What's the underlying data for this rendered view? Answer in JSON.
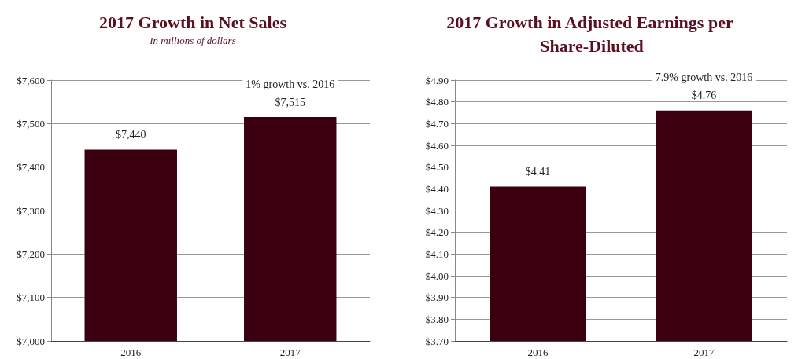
{
  "chart_data": [
    {
      "type": "bar",
      "title": "2017 Growth in Net Sales",
      "subtitle": "In millions of dollars",
      "categories": [
        "2016",
        "2017"
      ],
      "series": [
        {
          "color": "#3a0010",
          "values": [
            7440,
            7515
          ],
          "value_labels": [
            "$7,440",
            "$7,515"
          ]
        }
      ],
      "ylim": [
        7000,
        7600
      ],
      "yticks": [
        {
          "value": 7000,
          "label": "$7,000"
        },
        {
          "value": 7100,
          "label": "$7,100"
        },
        {
          "value": 7200,
          "label": "$7,200"
        },
        {
          "value": 7300,
          "label": "$7,300"
        },
        {
          "value": 7400,
          "label": "$7,400"
        },
        {
          "value": 7500,
          "label": "$7,500"
        },
        {
          "value": 7600,
          "label": "$7,600"
        }
      ],
      "grid": "y",
      "annotations": [
        {
          "text": "1% growth vs. 2016",
          "x": "2017",
          "y": 7515
        }
      ]
    },
    {
      "type": "bar",
      "title": "2017 Growth in Adjusted Earnings per Share-Diluted",
      "categories": [
        "2016",
        "2017"
      ],
      "series": [
        {
          "color": "#3a0010",
          "values": [
            4.41,
            4.76
          ],
          "value_labels": [
            "$4.41",
            "$4.76"
          ]
        }
      ],
      "ylim": [
        3.7,
        4.9
      ],
      "yticks": [
        {
          "value": 3.7,
          "label": "$3.70"
        },
        {
          "value": 3.8,
          "label": "$3.80"
        },
        {
          "value": 3.9,
          "label": "$3.90"
        },
        {
          "value": 4.0,
          "label": "$4.00"
        },
        {
          "value": 4.1,
          "label": "$4.10"
        },
        {
          "value": 4.2,
          "label": "$4.20"
        },
        {
          "value": 4.3,
          "label": "$4.30"
        },
        {
          "value": 4.4,
          "label": "$4.40"
        },
        {
          "value": 4.5,
          "label": "$4.50"
        },
        {
          "value": 4.6,
          "label": "$4.60"
        },
        {
          "value": 4.7,
          "label": "$4.70"
        },
        {
          "value": 4.8,
          "label": "$4.80"
        },
        {
          "value": 4.9,
          "label": "$4.90"
        }
      ],
      "grid": "y",
      "annotations": [
        {
          "text": "7.9% growth vs. 2016",
          "x": "2017",
          "y": 4.76
        }
      ]
    }
  ]
}
